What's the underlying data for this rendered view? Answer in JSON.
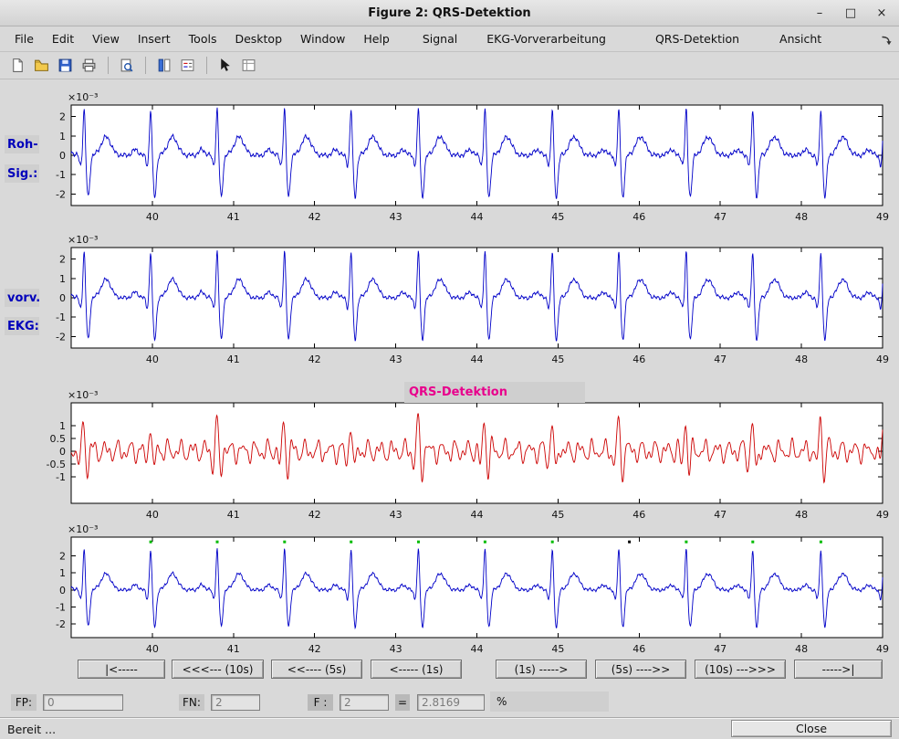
{
  "window": {
    "title": "Figure 2: QRS-Detektion",
    "controls": {
      "minimize": "–",
      "maximize": "□",
      "close": "×"
    }
  },
  "menu": {
    "items": [
      "File",
      "Edit",
      "View",
      "Insert",
      "Tools",
      "Desktop",
      "Window",
      "Help",
      "Signal",
      "EKG-Vorverarbeitung",
      "QRS-Detektion",
      "Ansicht"
    ]
  },
  "toolbar": {
    "icons": [
      "new-figure",
      "open-file",
      "save-figure",
      "print-figure",
      "print-preview",
      "insert-colorbar",
      "insert-legend",
      "pointer",
      "plot-browser"
    ]
  },
  "panel_labels": {
    "raw_line1": "Roh-",
    "raw_line2": "Sig.:",
    "pre_line1": "vorv.",
    "pre_line2": "EKG:",
    "qrs_title": "QRS-Detektion"
  },
  "nav_buttons": [
    "|<-----",
    "<<<--- (10s)",
    "<<---- (5s)",
    "<----- (1s)",
    "(1s) ----->",
    "(5s) ---->>",
    "(10s) --->>>",
    "----->|"
  ],
  "stats": {
    "fp_label": "FP:",
    "fp_value": "0",
    "fn_label": "FN:",
    "fn_value": "2",
    "f_label": "F :",
    "f_value": "2",
    "equals": "=",
    "result_value": "2.8169",
    "percent_label": "%"
  },
  "statusbar": {
    "text": "Bereit ...",
    "close_label": "Close"
  },
  "colors": {
    "raw_signal": "#0000c8",
    "filtered_signal": "#cc0000",
    "label_text": "#0000bb",
    "qrs_title_text": "#e8008c",
    "detection_marker": "#00bb00",
    "missed_marker": "#000000",
    "axes_background": "#ffffff"
  },
  "chart_data": [
    {
      "id": "raw",
      "type": "line",
      "title": "Roh-Sig.",
      "color": "#0000c8",
      "x_range": [
        39,
        49
      ],
      "y_range": [
        -2.6,
        2.6
      ],
      "x_ticks": [
        40,
        41,
        42,
        43,
        44,
        45,
        46,
        47,
        48,
        49
      ],
      "y_ticks": [
        2,
        1,
        0,
        -1,
        -2
      ],
      "scale_label": "×10⁻³",
      "signal_model": "ecg",
      "beat_times": [
        39.16,
        39.98,
        40.8,
        41.63,
        42.45,
        43.28,
        44.1,
        44.93,
        45.75,
        46.58,
        47.4,
        48.24,
        49.02
      ],
      "noise_amp": 0.13
    },
    {
      "id": "pre",
      "type": "line",
      "title": "vorv. EKG",
      "color": "#0000c8",
      "x_range": [
        39,
        49
      ],
      "y_range": [
        -2.6,
        2.6
      ],
      "x_ticks": [
        40,
        41,
        42,
        43,
        44,
        45,
        46,
        47,
        48,
        49
      ],
      "y_ticks": [
        2,
        1,
        0,
        -1,
        -2
      ],
      "scale_label": "×10⁻³",
      "signal_model": "ecg",
      "beat_times": [
        39.16,
        39.98,
        40.8,
        41.63,
        42.45,
        43.28,
        44.1,
        44.93,
        45.75,
        46.58,
        47.4,
        48.24,
        49.02
      ],
      "noise_amp": 0.11
    },
    {
      "id": "filt",
      "type": "line",
      "title": "QRS-Detektion",
      "color": "#cc0000",
      "x_range": [
        39,
        49
      ],
      "y_range": [
        -2.05,
        1.9
      ],
      "x_ticks": [
        40,
        41,
        42,
        43,
        44,
        45,
        46,
        47,
        48,
        49
      ],
      "y_ticks": [
        1,
        0.5,
        0,
        -0.5,
        -1
      ],
      "scale_label": "×10⁻³",
      "signal_model": "bandpass",
      "beat_times": [
        39.16,
        39.98,
        40.8,
        41.63,
        42.45,
        43.28,
        44.1,
        44.93,
        45.75,
        46.58,
        47.4,
        48.24,
        49.02
      ],
      "noise_amp": 0
    },
    {
      "id": "det",
      "type": "line",
      "title": "Detektionsergebnis",
      "color": "#0000c8",
      "x_range": [
        39,
        49
      ],
      "y_range": [
        -2.8,
        3.1
      ],
      "x_ticks": [
        40,
        41,
        42,
        43,
        44,
        45,
        46,
        47,
        48,
        49
      ],
      "y_ticks": [
        2,
        1,
        0,
        -1,
        -2
      ],
      "scale_label": "×10⁻³",
      "signal_model": "ecg",
      "beat_times": [
        39.16,
        39.98,
        40.8,
        41.63,
        42.45,
        43.28,
        44.1,
        44.93,
        45.75,
        46.58,
        47.4,
        48.24,
        49.02
      ],
      "noise_amp": 0.11,
      "markers": {
        "detected": [
          39.98,
          40.8,
          41.63,
          42.45,
          43.28,
          44.1,
          44.93,
          46.58,
          47.4,
          48.24
        ],
        "missed": [
          45.88
        ],
        "y_value": 2.82
      }
    }
  ]
}
